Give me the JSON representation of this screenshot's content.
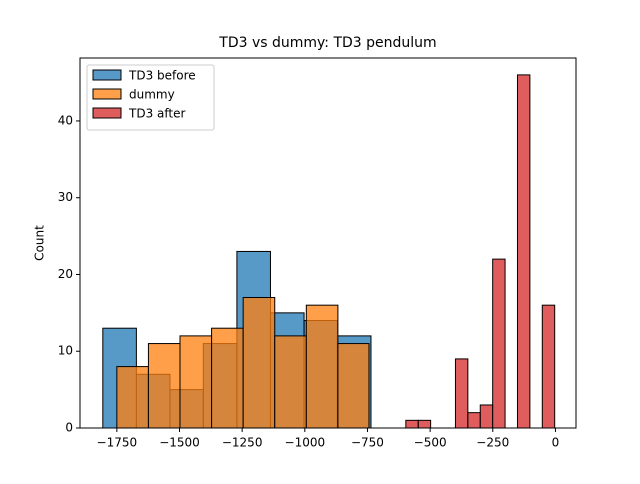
{
  "chart_data": {
    "type": "histogram",
    "title": "TD3 vs dummy: TD3 pendulum",
    "ylabel": "Count",
    "xlim": [
      -1897,
      82
    ],
    "ylim": [
      0,
      48.2
    ],
    "xticks": [
      {
        "value": -1750,
        "label": "−1750"
      },
      {
        "value": -1500,
        "label": "−1500"
      },
      {
        "value": -1250,
        "label": "−1250"
      },
      {
        "value": -1000,
        "label": "−1000"
      },
      {
        "value": -750,
        "label": "−750"
      },
      {
        "value": -500,
        "label": "−500"
      },
      {
        "value": -250,
        "label": "−250"
      },
      0
    ],
    "yticks": [
      0,
      10,
      20,
      30,
      40
    ],
    "legend": "upper left",
    "series": [
      {
        "name": "TD3 before",
        "color": "#1f77b4",
        "bins": [
          -1806,
          -1672,
          -1538,
          -1405,
          -1271,
          -1137,
          -1003,
          -870,
          -736
        ],
        "values": [
          13,
          7,
          5,
          11,
          23,
          15,
          14,
          12
        ]
      },
      {
        "name": "dummy",
        "color": "#ff7f0e",
        "bins": [
          -1750,
          -1624,
          -1498,
          -1372,
          -1246,
          -1120,
          -994,
          -868,
          -744
        ],
        "values": [
          8,
          11,
          12,
          13,
          17,
          12,
          16,
          11
        ]
      },
      {
        "name": "TD3 after",
        "color": "#d62728",
        "bins": [
          -597,
          -547.5,
          -498,
          -448.5,
          -399,
          -349.5,
          -300,
          -250.5,
          -201,
          -151.5,
          -102,
          -52.5,
          -3
        ],
        "values": [
          1,
          1,
          0,
          0,
          9,
          2,
          3,
          22,
          0,
          46,
          0,
          16
        ]
      }
    ]
  }
}
